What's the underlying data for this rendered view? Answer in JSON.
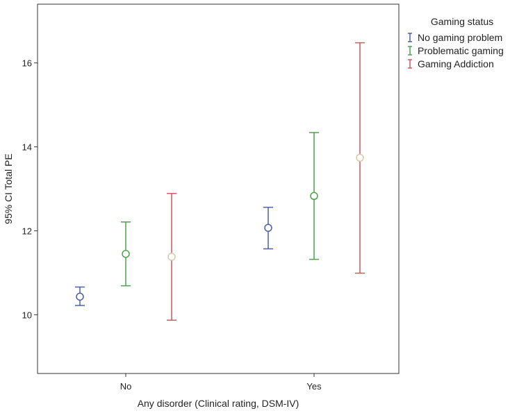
{
  "chart_data": {
    "type": "errorbar",
    "xlabel": "Any disorder (Clinical rating, DSM-IV)",
    "ylabel": "95% CI Total PE",
    "categories": [
      "No",
      "Yes"
    ],
    "ylim": [
      8.6,
      17.4
    ],
    "yticks": [
      10,
      12,
      14,
      16
    ],
    "grid": false,
    "legend": {
      "title": "Gaming status",
      "placement": "top-right, outside plot"
    },
    "series": [
      {
        "name": "No gaming problem",
        "color": "#4a5fa8",
        "points": [
          {
            "category": "No",
            "mean": 10.43,
            "lower": 10.22,
            "upper": 10.66
          },
          {
            "category": "Yes",
            "mean": 12.07,
            "lower": 11.57,
            "upper": 12.56
          }
        ]
      },
      {
        "name": "Problematic gaming",
        "color": "#4aa34a",
        "points": [
          {
            "category": "No",
            "mean": 11.45,
            "lower": 10.69,
            "upper": 12.21
          },
          {
            "category": "Yes",
            "mean": 12.83,
            "lower": 11.32,
            "upper": 14.34
          }
        ]
      },
      {
        "name": "Gaming Addiction",
        "color": "#d9525e",
        "marker_color": "#d8c8a8",
        "points": [
          {
            "category": "No",
            "mean": 11.38,
            "lower": 9.87,
            "upper": 12.89
          },
          {
            "category": "Yes",
            "mean": 13.74,
            "lower": 10.99,
            "upper": 16.48
          }
        ]
      }
    ]
  }
}
